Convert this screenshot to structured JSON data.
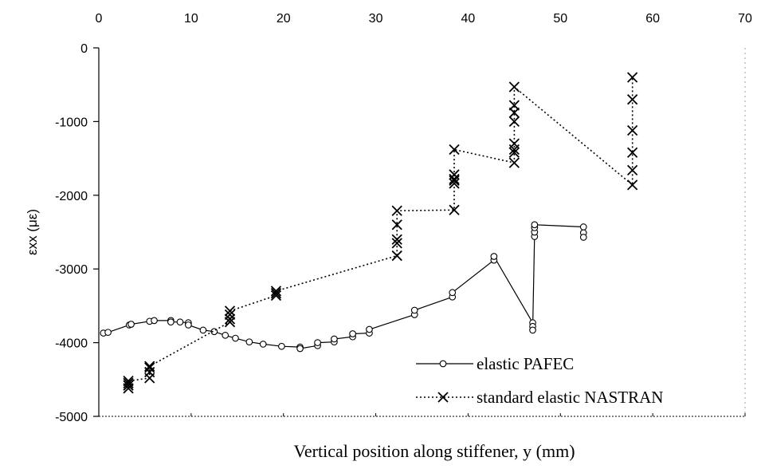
{
  "chart_data": {
    "type": "line",
    "xlabel": "Vertical position along stiffener, y (mm)",
    "ylabel": "εxx (με)",
    "xlim": [
      0,
      70
    ],
    "ylim": [
      -5000,
      0
    ],
    "x_ticks": [
      "0",
      "10",
      "20",
      "30",
      "40",
      "50",
      "60",
      "70"
    ],
    "y_ticks": [
      "0",
      "-1000",
      "-2000",
      "-3000",
      "-4000",
      "-5000"
    ],
    "x_axis_position": "top",
    "grid": false,
    "legend_position": "bottom-right",
    "series": [
      {
        "name": "elastic PAFEC",
        "style": "solid",
        "marker": "circle",
        "color": "#000000",
        "points": [
          [
            0.5,
            -3870
          ],
          [
            1.0,
            -3860
          ],
          [
            3.3,
            -3760
          ],
          [
            3.5,
            -3750
          ],
          [
            5.5,
            -3710
          ],
          [
            6.0,
            -3700
          ],
          [
            7.8,
            -3700
          ],
          [
            7.8,
            -3720
          ],
          [
            8.8,
            -3720
          ],
          [
            9.7,
            -3730
          ],
          [
            9.7,
            -3760
          ],
          [
            11.3,
            -3830
          ],
          [
            12.5,
            -3850
          ],
          [
            13.7,
            -3900
          ],
          [
            14.8,
            -3940
          ],
          [
            16.3,
            -3990
          ],
          [
            17.8,
            -4020
          ],
          [
            19.8,
            -4050
          ],
          [
            21.8,
            -4060
          ],
          [
            21.8,
            -4080
          ],
          [
            23.7,
            -4040
          ],
          [
            23.7,
            -4000
          ],
          [
            25.5,
            -3990
          ],
          [
            25.5,
            -3950
          ],
          [
            27.5,
            -3920
          ],
          [
            27.5,
            -3880
          ],
          [
            29.3,
            -3870
          ],
          [
            29.3,
            -3820
          ],
          [
            34.2,
            -3620
          ],
          [
            34.2,
            -3560
          ],
          [
            38.3,
            -3380
          ],
          [
            38.3,
            -3320
          ],
          [
            42.8,
            -2880
          ],
          [
            42.8,
            -2830
          ],
          [
            47.0,
            -3730
          ],
          [
            47.0,
            -3780
          ],
          [
            47.0,
            -3830
          ],
          [
            47.2,
            -2560
          ],
          [
            47.2,
            -2500
          ],
          [
            47.2,
            -2440
          ],
          [
            47.2,
            -2400
          ],
          [
            52.5,
            -2430
          ],
          [
            52.5,
            -2510
          ],
          [
            52.5,
            -2570
          ]
        ]
      },
      {
        "name": "standard elastic NASTRAN",
        "style": "dotted",
        "marker": "x",
        "color": "#000000",
        "points": [
          [
            3.2,
            -4620
          ],
          [
            3.2,
            -4580
          ],
          [
            3.2,
            -4550
          ],
          [
            3.2,
            -4520
          ],
          [
            5.5,
            -4480
          ],
          [
            5.5,
            -4400
          ],
          [
            5.5,
            -4340
          ],
          [
            5.5,
            -4320
          ],
          [
            14.2,
            -3720
          ],
          [
            14.2,
            -3680
          ],
          [
            14.2,
            -3620
          ],
          [
            14.2,
            -3570
          ],
          [
            19.2,
            -3360
          ],
          [
            19.2,
            -3330
          ],
          [
            19.2,
            -3300
          ],
          [
            32.3,
            -2820
          ],
          [
            32.3,
            -2650
          ],
          [
            32.3,
            -2600
          ],
          [
            32.3,
            -2400
          ],
          [
            32.3,
            -2210
          ],
          [
            38.5,
            -2200
          ],
          [
            38.5,
            -1840
          ],
          [
            38.5,
            -1800
          ],
          [
            38.5,
            -1780
          ],
          [
            38.5,
            -1720
          ],
          [
            38.5,
            -1380
          ],
          [
            45.0,
            -1560
          ],
          [
            45.0,
            -1420
          ],
          [
            45.0,
            -1380
          ],
          [
            45.0,
            -1300
          ],
          [
            45.0,
            -1000
          ],
          [
            45.0,
            -880
          ],
          [
            45.0,
            -780
          ],
          [
            45.0,
            -530
          ],
          [
            57.8,
            -1860
          ],
          [
            57.8,
            -1660
          ],
          [
            57.8,
            -1420
          ],
          [
            57.8,
            -1120
          ],
          [
            57.8,
            -700
          ],
          [
            57.8,
            -400
          ]
        ]
      }
    ]
  }
}
